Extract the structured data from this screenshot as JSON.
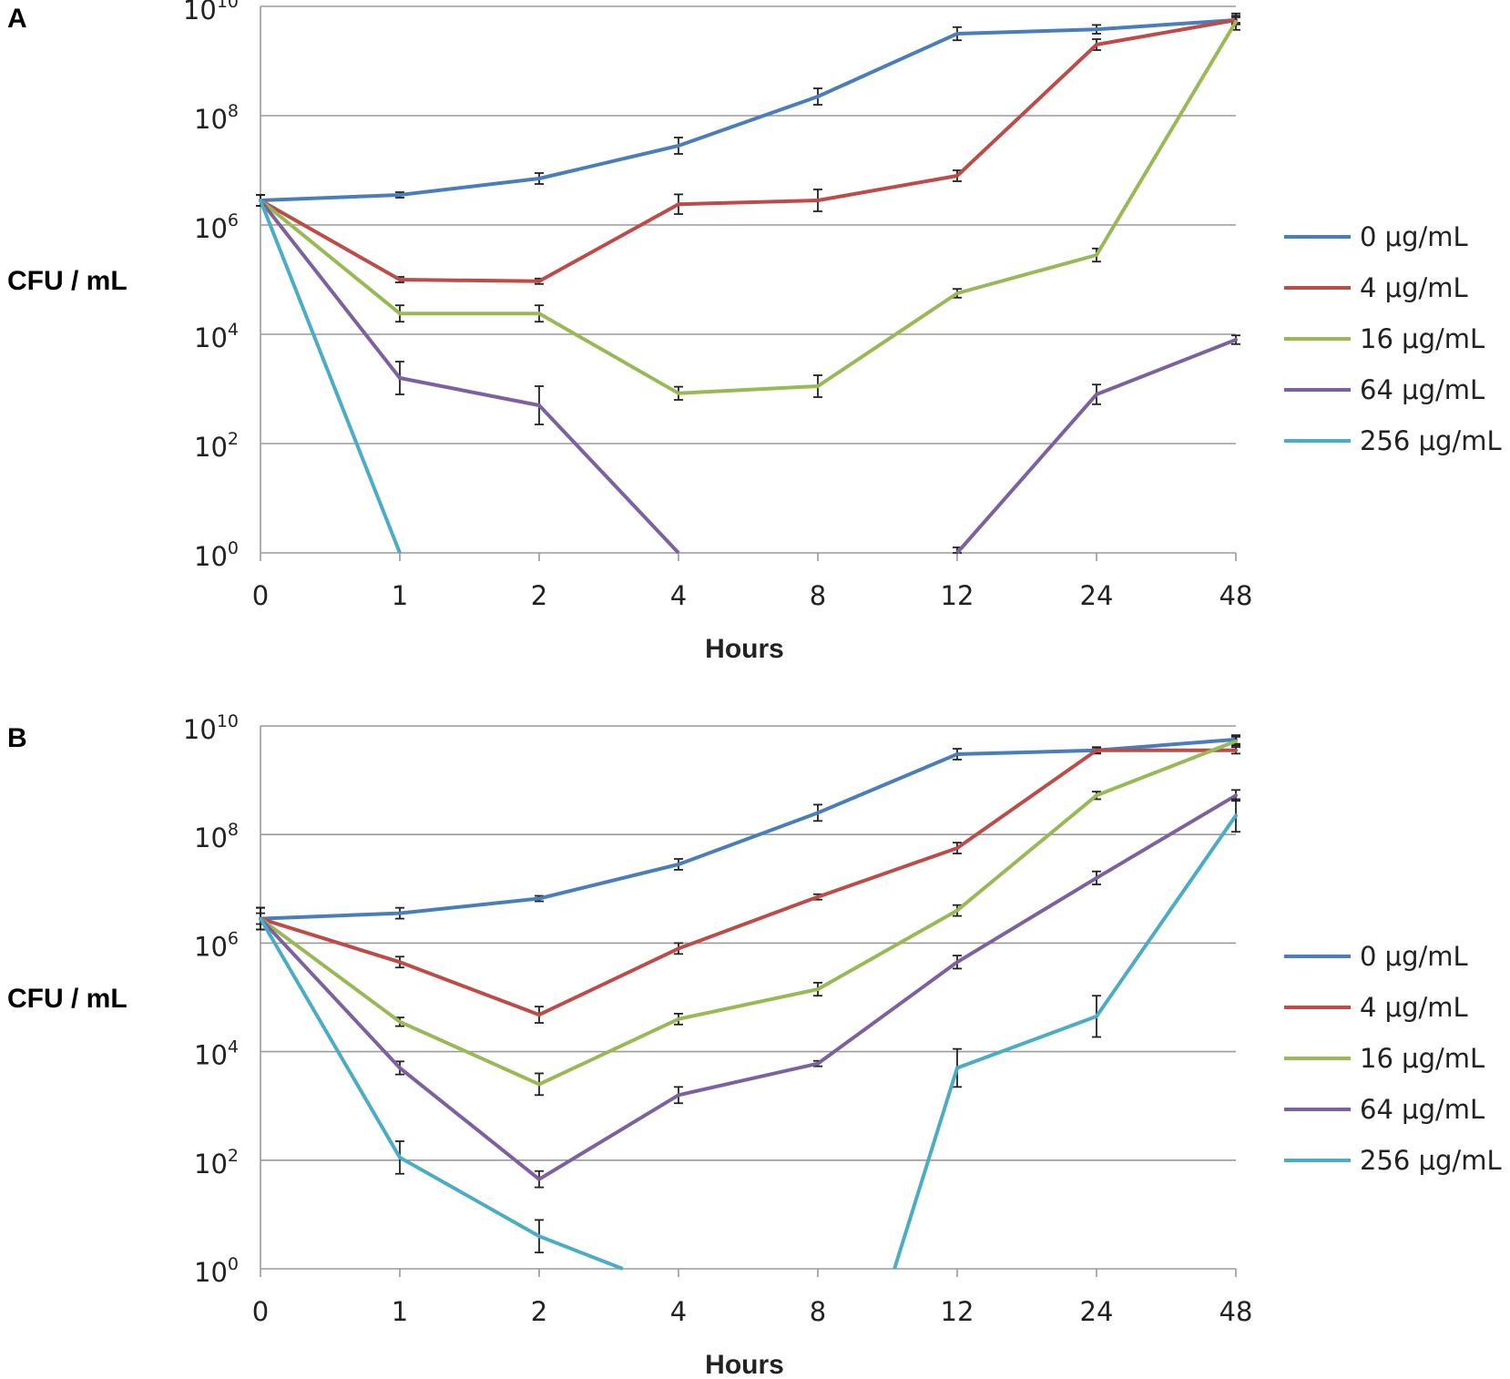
{
  "chart_data": [
    {
      "type": "line",
      "panel": "A",
      "title": "",
      "xlabel": "Hours",
      "ylabel": "CFU / mL",
      "y_scale": "log10",
      "ylim": [
        0,
        10
      ],
      "grid": true,
      "legend_position": "right",
      "categories": [
        "0",
        "1",
        "2",
        "4",
        "8",
        "12",
        "24",
        "48"
      ],
      "y_ticks": [
        {
          "base": "10",
          "exp": "10"
        },
        {
          "base": "10",
          "exp": "8"
        },
        {
          "base": "10",
          "exp": "6"
        },
        {
          "base": "10",
          "exp": "4"
        },
        {
          "base": "10",
          "exp": "2"
        },
        {
          "base": "10",
          "exp": "0"
        }
      ],
      "series": [
        {
          "name": "0 μg/mL",
          "color": "#4a7ebb",
          "values": [
            6.45,
            6.55,
            6.85,
            7.45,
            8.35,
            9.5,
            9.58,
            9.75
          ],
          "errors": [
            0.1,
            0.05,
            0.1,
            0.15,
            0.15,
            0.12,
            0.08,
            0.05
          ],
          "stops_at_zero": []
        },
        {
          "name": "4 μg/mL",
          "color": "#be4b48",
          "values": [
            6.45,
            5.0,
            4.97,
            6.38,
            6.45,
            6.9,
            9.3,
            9.75
          ],
          "errors": [
            0.1,
            0.05,
            0.05,
            0.18,
            0.2,
            0.1,
            0.1,
            0.08
          ],
          "stops_at_zero": []
        },
        {
          "name": "16 μg/mL",
          "color": "#98b954",
          "values": [
            6.45,
            4.38,
            4.38,
            2.92,
            3.05,
            4.75,
            5.45,
            9.72
          ],
          "errors": [
            0.1,
            0.15,
            0.15,
            0.12,
            0.2,
            0.08,
            0.12,
            0.15
          ],
          "stops_at_zero": []
        },
        {
          "name": "64 μg/mL",
          "color": "#7d60a0",
          "values": [
            6.45,
            3.2,
            2.7,
            0.0,
            0.0,
            0.0,
            2.9,
            3.9
          ],
          "errors": [
            0.1,
            0.3,
            0.35,
            0.0,
            0.0,
            0.1,
            0.18,
            0.08
          ],
          "stops_at_zero": [
            3,
            5
          ]
        },
        {
          "name": "256 μg/mL",
          "color": "#4bacc6",
          "values": [
            6.45,
            0.0,
            0.0,
            0.0,
            0.0,
            0.0,
            0.0,
            0.0
          ],
          "errors": [
            0.1,
            0.0,
            0.0,
            0.0,
            0.0,
            0.0,
            0.0,
            0.0
          ],
          "stops_at_zero": [
            1
          ]
        }
      ]
    },
    {
      "type": "line",
      "panel": "B",
      "title": "",
      "xlabel": "Hours",
      "ylabel": "CFU / mL",
      "y_scale": "log10",
      "ylim": [
        0,
        10
      ],
      "grid": true,
      "legend_position": "right",
      "categories": [
        "0",
        "1",
        "2",
        "4",
        "8",
        "12",
        "24",
        "48"
      ],
      "y_ticks": [
        {
          "base": "10",
          "exp": "10"
        },
        {
          "base": "10",
          "exp": "8"
        },
        {
          "base": "10",
          "exp": "6"
        },
        {
          "base": "10",
          "exp": "4"
        },
        {
          "base": "10",
          "exp": "2"
        },
        {
          "base": "10",
          "exp": "0"
        }
      ],
      "series": [
        {
          "name": "0 μg/mL",
          "color": "#4a7ebb",
          "values": [
            6.45,
            6.55,
            6.82,
            7.45,
            8.4,
            9.48,
            9.55,
            9.75
          ],
          "errors": [
            0.1,
            0.1,
            0.05,
            0.1,
            0.15,
            0.1,
            0.06,
            0.08
          ],
          "stops_at_zero": []
        },
        {
          "name": "4 μg/mL",
          "color": "#be4b48",
          "values": [
            6.45,
            5.65,
            4.68,
            5.9,
            6.85,
            7.75,
            9.55,
            9.55
          ],
          "errors": [
            0.2,
            0.1,
            0.15,
            0.1,
            0.05,
            0.1,
            0.05,
            0.06
          ],
          "stops_at_zero": []
        },
        {
          "name": "16 μg/mL",
          "color": "#98b954",
          "values": [
            6.45,
            4.55,
            3.4,
            4.6,
            5.15,
            6.6,
            8.72,
            9.72
          ],
          "errors": [
            0.2,
            0.08,
            0.2,
            0.1,
            0.12,
            0.1,
            0.07,
            0.08
          ],
          "stops_at_zero": []
        },
        {
          "name": "64 μg/mL",
          "color": "#7d60a0",
          "values": [
            6.45,
            3.7,
            1.65,
            3.2,
            3.78,
            5.65,
            7.2,
            8.72
          ],
          "errors": [
            0.2,
            0.12,
            0.15,
            0.15,
            0.05,
            0.12,
            0.12,
            0.1
          ],
          "stops_at_zero": []
        },
        {
          "name": "256 μg/mL",
          "color": "#4bacc6",
          "values": [
            6.45,
            2.05,
            0.6,
            0.0,
            0.0,
            3.7,
            4.65,
            8.35
          ],
          "errors": [
            0.2,
            0.3,
            0.3,
            0.0,
            0.0,
            0.35,
            0.38,
            0.3
          ],
          "stops_at_zero": [
            2.6,
            4.55
          ]
        }
      ]
    }
  ]
}
